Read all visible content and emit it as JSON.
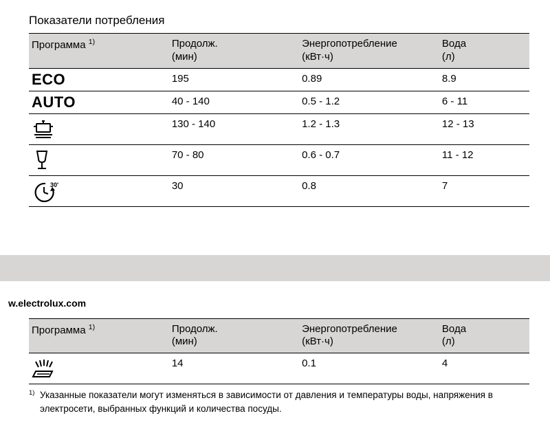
{
  "title": "Показатели потребления",
  "footnote_marker": "1)",
  "columns": [
    {
      "label": "Программа",
      "sup": "1)",
      "sub": ""
    },
    {
      "label": "Продолж.",
      "sup": "",
      "sub": "(мин)"
    },
    {
      "label": "Энергопотребление",
      "sup": "",
      "sub": "(кВт·ч)"
    },
    {
      "label": "Вода",
      "sup": "",
      "sub": "(л)"
    }
  ],
  "table1_rows": [
    {
      "program_type": "text",
      "program_text": "ECO",
      "duration": "195",
      "energy": "0.89",
      "water": "8.9"
    },
    {
      "program_type": "text",
      "program_text": "AUTO",
      "duration": "40 - 140",
      "energy": "0.5 - 1.2",
      "water": "6 - 11"
    },
    {
      "program_type": "icon",
      "icon": "pot",
      "duration": "130 - 140",
      "energy": "1.2 - 1.3",
      "water": "12 - 13"
    },
    {
      "program_type": "icon",
      "icon": "glass",
      "duration": "70 - 80",
      "energy": "0.6 - 0.7",
      "water": "11 - 12"
    },
    {
      "program_type": "icon",
      "icon": "clock30",
      "duration": "30",
      "energy": "0.8",
      "water": "7"
    }
  ],
  "url_text": "w.electrolux.com",
  "table2_rows": [
    {
      "program_type": "icon",
      "icon": "spray",
      "duration": "14",
      "energy": "0.1",
      "water": "4"
    }
  ],
  "footnote_text": "Указанные показатели могут изменяться в зависимости от давления и температуры воды, напряжения в электросети, выбранных функций и количества посуды.",
  "colors": {
    "header_bg": "#d7d6d4",
    "border": "#000000",
    "text": "#000000",
    "page_bg": "#ffffff"
  },
  "typography": {
    "title_fontsize": 17,
    "header_fontsize": 15,
    "cell_fontsize": 15,
    "program_text_fontsize": 22,
    "footnote_fontsize": 13.5,
    "url_fontsize": 14
  },
  "column_widths_pct": [
    28,
    26,
    28,
    18
  ],
  "icons": {
    "pot": "dishwasher-pot-icon",
    "glass": "wine-glass-icon",
    "clock30": "clock-30min-icon",
    "spray": "rinse-spray-icon"
  }
}
